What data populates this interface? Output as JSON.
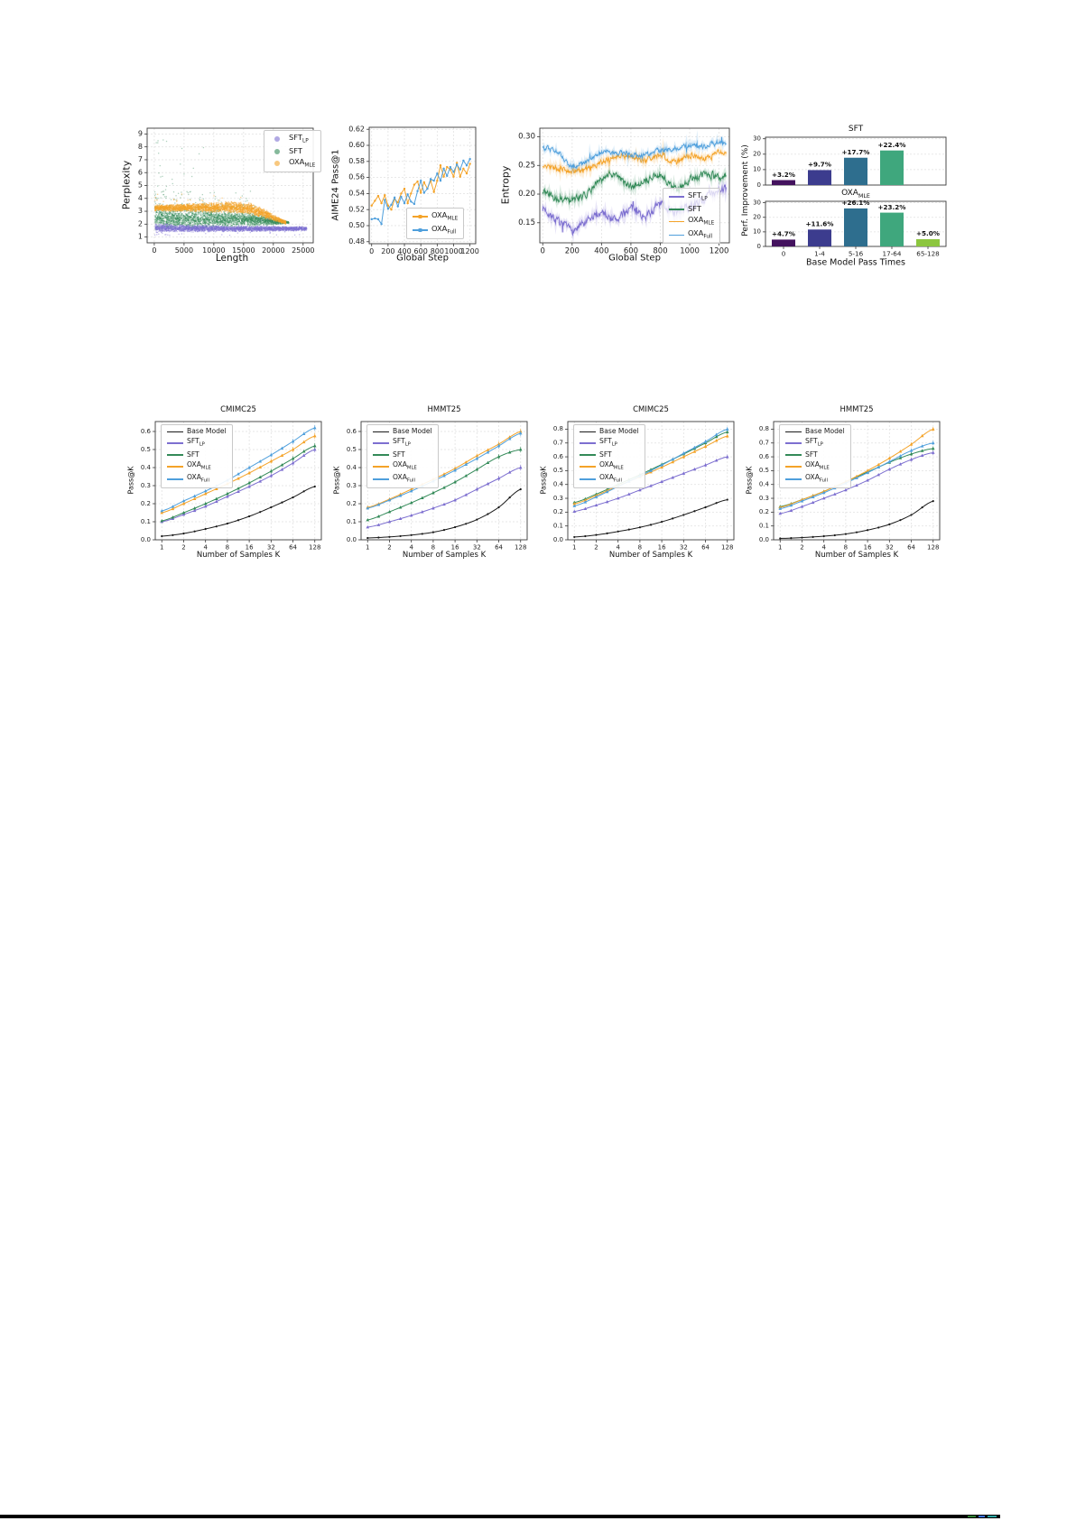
{
  "colors": {
    "sft_lp": "#7d6fd0",
    "sft": "#338a58",
    "oxa_mle": "#f4a329",
    "oxa_full": "#4f9fdc",
    "base": "#1a1a1a",
    "grid": "#e2e2e2",
    "frame": "#3a3a3a",
    "bar_palette": [
      "#43125e",
      "#3c3c8e",
      "#2e6e8e",
      "#3fa77d",
      "#8cc63f"
    ],
    "rule_black": "#000000",
    "rule_specks": [
      "#2e7d32",
      "#3a6fd8",
      "#2aa3a0"
    ]
  },
  "chart_data": [
    {
      "id": "perplexity_scatter",
      "type": "scatter",
      "xlabel": "Length",
      "ylabel": "Perplexity",
      "xlim": [
        -1200,
        26700
      ],
      "ylim": [
        0.55,
        9.45
      ],
      "xticks": [
        0,
        5000,
        10000,
        15000,
        20000,
        25000
      ],
      "yticks": [
        1,
        2,
        3,
        4,
        5,
        6,
        7,
        8,
        9
      ],
      "legend_position": "top-right",
      "clouds": [
        {
          "name": "SFT",
          "sub": "",
          "color": "sft",
          "n": 3000,
          "env_x": [
            0,
            4000,
            9000,
            14000,
            17000,
            19500,
            21500,
            22500
          ],
          "y_lo": [
            1.55,
            1.6,
            1.66,
            1.74,
            1.84,
            1.95,
            2.05,
            2.1
          ],
          "y_hi": [
            3.35,
            3.32,
            3.25,
            3.1,
            2.9,
            2.6,
            2.35,
            2.25
          ],
          "outliers": {
            "n": 110,
            "x": [
              0,
              17000
            ],
            "y": [
              3.3,
              4.6
            ]
          },
          "outliers2": {
            "n": 26,
            "x": [
              200,
              9000
            ],
            "y": [
              4.5,
              8.8
            ]
          }
        },
        {
          "name": "SFT",
          "sub": "LP",
          "color": "sft_lp",
          "n": 2400,
          "env_x": [
            0,
            5000,
            15000,
            25500
          ],
          "y_lo": [
            1.38,
            1.42,
            1.45,
            1.52
          ],
          "y_hi": [
            2.1,
            2.0,
            1.92,
            1.88
          ],
          "outliers": {
            "n": 40,
            "x": [
              0,
              24500
            ],
            "y": [
              1.18,
              2.5
            ]
          }
        },
        {
          "name": "OXA",
          "sub": "MLE",
          "color": "oxa_mle",
          "n": 2500,
          "env_x": [
            0,
            4000,
            9000,
            13000,
            16000,
            18500,
            20500,
            22000
          ],
          "y_lo": [
            3.05,
            3.0,
            2.95,
            2.9,
            2.72,
            2.45,
            2.2,
            2.02
          ],
          "y_hi": [
            3.55,
            3.62,
            3.72,
            3.82,
            3.72,
            3.25,
            2.65,
            2.3
          ],
          "outliers": {
            "n": 18,
            "x": [
              0,
              15000
            ],
            "y": [
              3.8,
              4.4
            ]
          }
        }
      ],
      "legend_order": [
        1,
        0,
        2
      ]
    },
    {
      "id": "aime24_pass1",
      "type": "line",
      "xlabel": "Global Step",
      "ylabel": "AIME24 Pass@1",
      "xlim": [
        -30,
        1270
      ],
      "ylim": [
        0.4775,
        0.6225
      ],
      "xticks": [
        0,
        200,
        400,
        600,
        800,
        1000,
        1200
      ],
      "yticks": [
        0.48,
        0.5,
        0.52,
        0.54,
        0.56,
        0.58,
        0.6,
        0.62
      ],
      "legend_position": "bottom-right",
      "x_series": {
        "start": 0,
        "step": 40
      },
      "series": [
        {
          "name": "OXA",
          "sub": "MLE",
          "color": "oxa_mle",
          "y": [
            0.525,
            0.531,
            0.537,
            0.528,
            0.538,
            0.525,
            0.52,
            0.533,
            0.529,
            0.54,
            0.546,
            0.528,
            0.54,
            0.551,
            0.555,
            0.541,
            0.554,
            0.546,
            0.556,
            0.542,
            0.556,
            0.575,
            0.561,
            0.573,
            0.57,
            0.561,
            0.578,
            0.561,
            0.571,
            0.565,
            0.577
          ]
        },
        {
          "name": "OXA",
          "sub": "Full",
          "color": "oxa_full",
          "y": [
            0.508,
            0.509,
            0.508,
            0.502,
            0.532,
            0.521,
            0.526,
            0.535,
            0.524,
            0.536,
            0.528,
            0.539,
            0.53,
            0.527,
            0.543,
            0.556,
            0.541,
            0.546,
            0.558,
            0.556,
            0.565,
            0.556,
            0.571,
            0.562,
            0.573,
            0.567,
            0.576,
            0.57,
            0.581,
            0.575,
            0.583
          ]
        }
      ]
    },
    {
      "id": "entropy",
      "type": "noisy_line",
      "xlabel": "Global Step",
      "ylabel": "Entropy",
      "xlim": [
        -20,
        1270
      ],
      "ylim": [
        0.115,
        0.315
      ],
      "xticks": [
        0,
        200,
        400,
        600,
        800,
        1000,
        1200
      ],
      "yticks": [
        0.15,
        0.2,
        0.25,
        0.3
      ],
      "legend_position": "center-right",
      "keys_x_step": 100,
      "series": [
        {
          "name": "SFT",
          "sub": "LP",
          "color": "sft_lp",
          "amp": 0.0105,
          "keys_y": [
            0.176,
            0.152,
            0.138,
            0.15,
            0.168,
            0.156,
            0.175,
            0.162,
            0.182,
            0.17,
            0.178,
            0.192,
            0.208
          ]
        },
        {
          "name": "SFT",
          "sub": "",
          "color": "sft",
          "amp": 0.009,
          "keys_y": [
            0.205,
            0.193,
            0.19,
            0.2,
            0.228,
            0.232,
            0.214,
            0.225,
            0.233,
            0.208,
            0.225,
            0.234,
            0.228
          ]
        },
        {
          "name": "OXA",
          "sub": "MLE",
          "color": "oxa_mle",
          "amp": 0.007,
          "keys_y": [
            0.247,
            0.245,
            0.24,
            0.243,
            0.255,
            0.266,
            0.265,
            0.26,
            0.268,
            0.255,
            0.268,
            0.262,
            0.272
          ]
        },
        {
          "name": "OXA",
          "sub": "Full",
          "color": "oxa_full",
          "amp": 0.0065,
          "keys_y": [
            0.281,
            0.273,
            0.249,
            0.258,
            0.271,
            0.272,
            0.27,
            0.268,
            0.276,
            0.28,
            0.284,
            0.283,
            0.29
          ]
        }
      ]
    },
    {
      "id": "improvement_sft",
      "type": "bar",
      "title": "SFT",
      "title_sub": "",
      "ylabel": "Perf. Improvement (%)",
      "ylim": [
        0,
        31
      ],
      "yticks": [
        0,
        10,
        20,
        30
      ],
      "categories": [
        "0",
        "1-4",
        "5-16",
        "17-64",
        "65-128"
      ],
      "values": [
        3.2,
        9.7,
        17.7,
        22.4,
        null
      ],
      "value_labels": [
        "+3.2%",
        "+9.7%",
        "+17.7%",
        "+22.4%",
        ""
      ],
      "show_category_labels": false
    },
    {
      "id": "improvement_oxa_mle",
      "type": "bar",
      "title": "OXA",
      "title_sub": "MLE",
      "xlabel": "Base Model Pass Times",
      "ylim": [
        0,
        31
      ],
      "yticks": [
        0,
        10,
        20,
        30
      ],
      "categories": [
        "0",
        "1-4",
        "5-16",
        "17-64",
        "65-128"
      ],
      "values": [
        4.7,
        11.6,
        26.1,
        23.2,
        5.0
      ],
      "value_labels": [
        "+4.7%",
        "+11.6%",
        "+26.1%",
        "+23.2%",
        "+5.0%"
      ],
      "show_category_labels": true
    },
    {
      "id": "passk_cmimc25_a",
      "type": "logline",
      "title": "CMIMC25",
      "xlabel": "Number of Samples K",
      "ylabel": "Pass@K",
      "k": [
        1,
        2,
        4,
        8,
        16,
        32,
        64,
        128
      ],
      "ylim": [
        0,
        0.655
      ],
      "yticks": [
        0.0,
        0.1,
        0.2,
        0.3,
        0.4,
        0.5,
        0.6
      ],
      "legend_position": "top-left",
      "series": [
        {
          "name": "Base Model",
          "sub": "",
          "color": "base",
          "y": [
            0.02,
            0.035,
            0.06,
            0.09,
            0.13,
            0.18,
            0.235,
            0.295
          ]
        },
        {
          "name": "SFT",
          "sub": "LP",
          "color": "sft_lp",
          "y": [
            0.1,
            0.14,
            0.185,
            0.24,
            0.295,
            0.355,
            0.425,
            0.5
          ]
        },
        {
          "name": "SFT",
          "sub": "",
          "color": "sft",
          "y": [
            0.105,
            0.15,
            0.2,
            0.255,
            0.315,
            0.38,
            0.45,
            0.52
          ]
        },
        {
          "name": "OXA",
          "sub": "MLE",
          "color": "oxa_mle",
          "y": [
            0.15,
            0.2,
            0.255,
            0.31,
            0.37,
            0.435,
            0.5,
            0.575
          ]
        },
        {
          "name": "OXA",
          "sub": "Full",
          "color": "oxa_full",
          "y": [
            0.16,
            0.215,
            0.27,
            0.33,
            0.4,
            0.47,
            0.545,
            0.62
          ]
        }
      ]
    },
    {
      "id": "passk_hmmt25_a",
      "type": "logline",
      "title": "HMMT25",
      "xlabel": "Number of Samples K",
      "ylabel": "Pass@K",
      "k": [
        1,
        2,
        4,
        8,
        16,
        32,
        64,
        128
      ],
      "ylim": [
        0,
        0.655
      ],
      "yticks": [
        0.0,
        0.1,
        0.2,
        0.3,
        0.4,
        0.5,
        0.6
      ],
      "legend_position": "top-left",
      "series": [
        {
          "name": "Base Model",
          "sub": "",
          "color": "base",
          "y": [
            0.01,
            0.016,
            0.026,
            0.042,
            0.07,
            0.112,
            0.18,
            0.28
          ]
        },
        {
          "name": "SFT",
          "sub": "LP",
          "color": "sft_lp",
          "y": [
            0.07,
            0.1,
            0.135,
            0.175,
            0.22,
            0.28,
            0.34,
            0.4
          ]
        },
        {
          "name": "SFT",
          "sub": "",
          "color": "sft",
          "y": [
            0.11,
            0.155,
            0.205,
            0.26,
            0.32,
            0.39,
            0.46,
            0.5
          ]
        },
        {
          "name": "OXA",
          "sub": "MLE",
          "color": "oxa_mle",
          "y": [
            0.18,
            0.225,
            0.28,
            0.335,
            0.395,
            0.465,
            0.53,
            0.6
          ]
        },
        {
          "name": "OXA",
          "sub": "Full",
          "color": "oxa_full",
          "y": [
            0.175,
            0.22,
            0.27,
            0.325,
            0.385,
            0.45,
            0.52,
            0.59
          ]
        }
      ]
    },
    {
      "id": "passk_cmimc25_b",
      "type": "logline",
      "title": "CMIMC25",
      "xlabel": "Number of Samples K",
      "ylabel": "Pass@K",
      "k": [
        1,
        2,
        4,
        8,
        16,
        32,
        64,
        128
      ],
      "ylim": [
        0,
        0.855
      ],
      "yticks": [
        0.0,
        0.1,
        0.2,
        0.3,
        0.4,
        0.5,
        0.6,
        0.7,
        0.8
      ],
      "legend_position": "top-left",
      "series": [
        {
          "name": "Base Model",
          "sub": "",
          "color": "base",
          "y": [
            0.02,
            0.035,
            0.06,
            0.09,
            0.13,
            0.18,
            0.235,
            0.29
          ]
        },
        {
          "name": "SFT",
          "sub": "LP",
          "color": "sft_lp",
          "y": [
            0.205,
            0.25,
            0.3,
            0.36,
            0.42,
            0.48,
            0.54,
            0.6
          ]
        },
        {
          "name": "SFT",
          "sub": "",
          "color": "sft",
          "y": [
            0.27,
            0.33,
            0.4,
            0.47,
            0.545,
            0.62,
            0.7,
            0.78
          ]
        },
        {
          "name": "OXA",
          "sub": "MLE",
          "color": "oxa_mle",
          "y": [
            0.26,
            0.32,
            0.39,
            0.455,
            0.525,
            0.6,
            0.675,
            0.75
          ]
        },
        {
          "name": "OXA",
          "sub": "Full",
          "color": "oxa_full",
          "y": [
            0.245,
            0.31,
            0.385,
            0.46,
            0.54,
            0.625,
            0.71,
            0.8
          ]
        }
      ]
    },
    {
      "id": "passk_hmmt25_b",
      "type": "logline",
      "title": "HMMT25",
      "xlabel": "Number of Samples K",
      "ylabel": "Pass@K",
      "k": [
        1,
        2,
        4,
        8,
        16,
        32,
        64,
        128
      ],
      "ylim": [
        0,
        0.855
      ],
      "yticks": [
        0.0,
        0.1,
        0.2,
        0.3,
        0.4,
        0.5,
        0.6,
        0.7,
        0.8
      ],
      "legend_position": "top-left",
      "series": [
        {
          "name": "Base Model",
          "sub": "",
          "color": "base",
          "y": [
            0.01,
            0.016,
            0.026,
            0.042,
            0.07,
            0.112,
            0.18,
            0.28
          ]
        },
        {
          "name": "SFT",
          "sub": "LP",
          "color": "sft_lp",
          "y": [
            0.19,
            0.24,
            0.3,
            0.36,
            0.43,
            0.51,
            0.58,
            0.63
          ]
        },
        {
          "name": "SFT",
          "sub": "",
          "color": "sft",
          "y": [
            0.24,
            0.29,
            0.35,
            0.42,
            0.49,
            0.56,
            0.62,
            0.66
          ]
        },
        {
          "name": "OXA",
          "sub": "MLE",
          "color": "oxa_mle",
          "y": [
            0.235,
            0.29,
            0.35,
            0.42,
            0.5,
            0.59,
            0.69,
            0.8
          ]
        },
        {
          "name": "OXA",
          "sub": "Full",
          "color": "oxa_full",
          "y": [
            0.225,
            0.28,
            0.34,
            0.41,
            0.485,
            0.565,
            0.645,
            0.7
          ]
        }
      ]
    }
  ]
}
